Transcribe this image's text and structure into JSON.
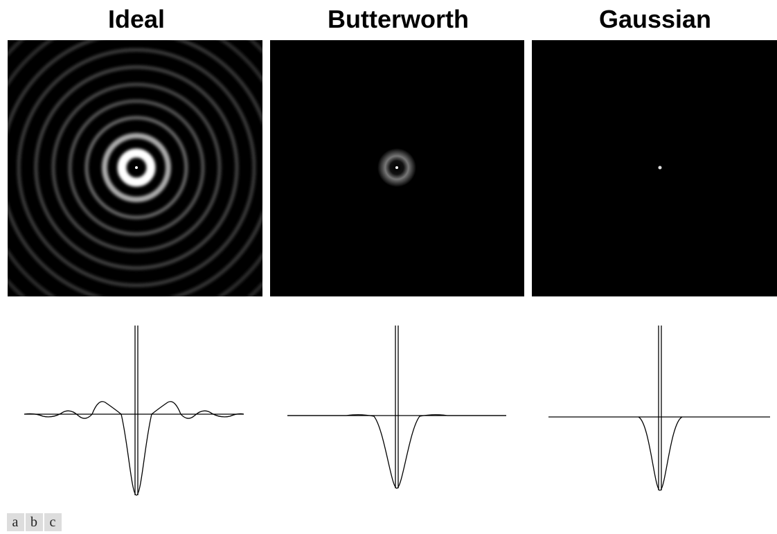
{
  "titles": [
    "Ideal",
    "Butterworth",
    "Gaussian"
  ],
  "labels": [
    "a",
    "b",
    "c"
  ]
}
